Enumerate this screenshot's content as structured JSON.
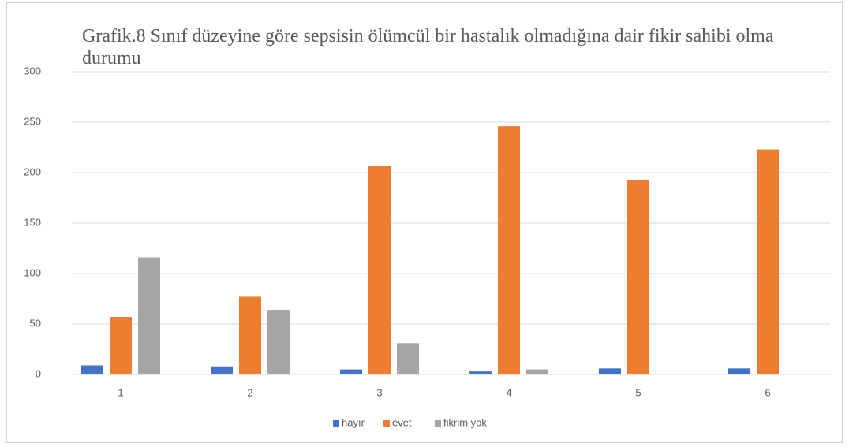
{
  "chart_data": {
    "type": "bar",
    "title": "Grafik.8 Sınıf düzeyine göre sepsisin ölümcül bir hastalık olmadığına dair fikir sahibi olma durumu",
    "categories": [
      "1",
      "2",
      "3",
      "4",
      "5",
      "6"
    ],
    "series": [
      {
        "name": "hayır",
        "color": "#4472c4",
        "values": [
          9,
          8,
          5,
          3,
          6,
          6
        ]
      },
      {
        "name": "evet",
        "color": "#ed7d31",
        "values": [
          57,
          77,
          207,
          246,
          193,
          223
        ]
      },
      {
        "name": "fikrim yok",
        "color": "#a5a5a5",
        "values": [
          116,
          64,
          31,
          5,
          0,
          0
        ]
      }
    ],
    "ylim": [
      0,
      300
    ],
    "yticks": [
      0,
      50,
      100,
      150,
      200,
      250,
      300
    ],
    "grid": true,
    "legend": "bottom"
  }
}
